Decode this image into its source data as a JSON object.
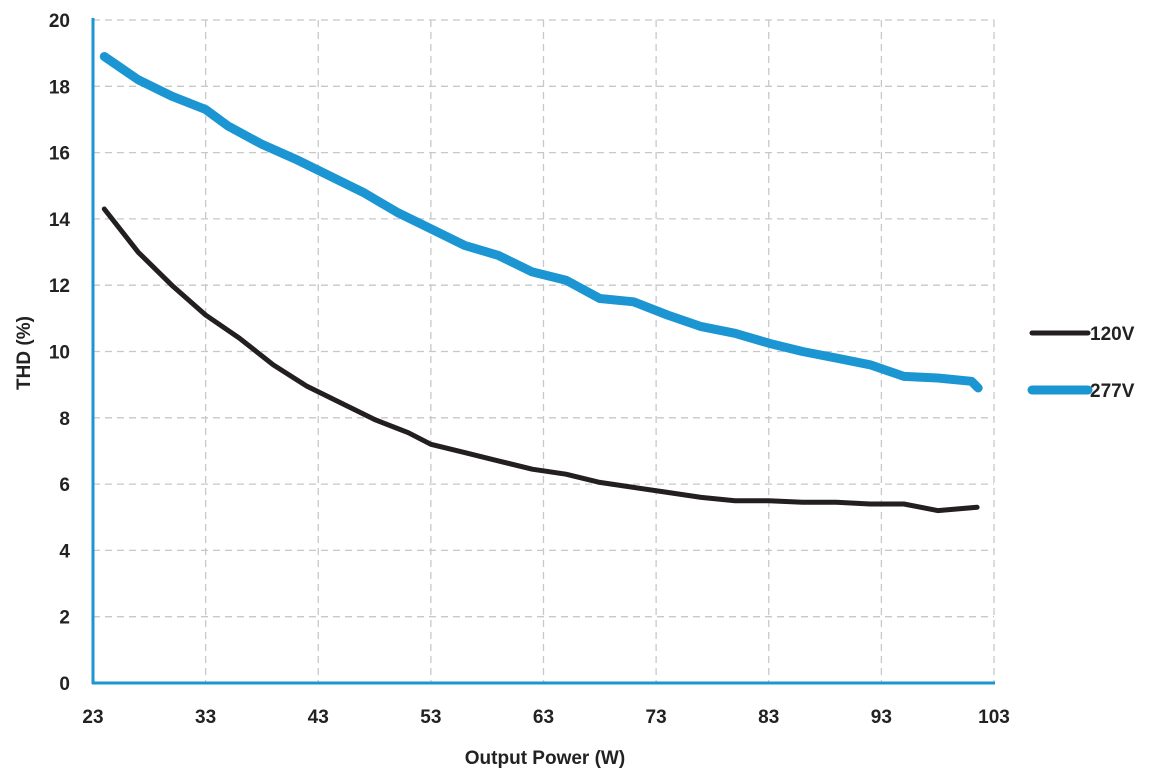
{
  "chart_data": {
    "type": "line",
    "title": "",
    "xlabel": "Output Power (W)",
    "ylabel": "THD (%)",
    "xlim": [
      23,
      103
    ],
    "ylim": [
      0,
      20
    ],
    "xticks": [
      23,
      33,
      43,
      53,
      63,
      73,
      83,
      93,
      103
    ],
    "yticks": [
      0,
      2,
      4,
      6,
      8,
      10,
      12,
      14,
      16,
      18,
      20
    ],
    "grid": true,
    "legend_position": "right",
    "series": [
      {
        "name": "120V",
        "color": "#231f20",
        "x": [
          24,
          27,
          30,
          33,
          36,
          39,
          42,
          45,
          48,
          51,
          53,
          56,
          59,
          62,
          65,
          68,
          71,
          74,
          77,
          80,
          83,
          86,
          89,
          92,
          95,
          98,
          101.5
        ],
        "y": [
          14.3,
          13.0,
          12.0,
          11.1,
          10.4,
          9.6,
          8.95,
          8.45,
          7.95,
          7.55,
          7.2,
          6.95,
          6.7,
          6.45,
          6.3,
          6.05,
          5.9,
          5.75,
          5.6,
          5.5,
          5.5,
          5.45,
          5.45,
          5.4,
          5.4,
          5.2,
          5.3
        ]
      },
      {
        "name": "277V",
        "color": "#1b96d3",
        "x": [
          24,
          27,
          30,
          33,
          35,
          38,
          41,
          44,
          47,
          50,
          53,
          56,
          59,
          62,
          65,
          68,
          71,
          74,
          77,
          80,
          83,
          86,
          89,
          92,
          95,
          98,
          101,
          101.6
        ],
        "y": [
          18.9,
          18.2,
          17.7,
          17.3,
          16.8,
          16.25,
          15.8,
          15.3,
          14.8,
          14.2,
          13.7,
          13.2,
          12.9,
          12.4,
          12.15,
          11.6,
          11.5,
          11.1,
          10.75,
          10.55,
          10.25,
          10.0,
          9.8,
          9.6,
          9.25,
          9.2,
          9.1,
          8.9
        ]
      }
    ]
  }
}
